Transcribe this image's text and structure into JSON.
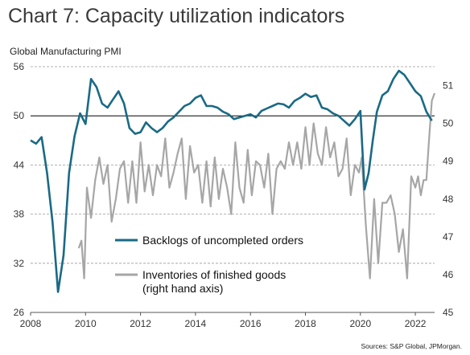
{
  "title": "Chart 7: Capacity utilization indicators",
  "source": "Sources: S&P Global, JPMorgan.",
  "chart_data": {
    "type": "line",
    "ylabel": "Global Manufacturing PMI",
    "left_axis": {
      "range": [
        26,
        56
      ],
      "ticks": [
        26,
        32,
        38,
        44,
        50,
        56
      ]
    },
    "right_axis": {
      "range": [
        45,
        51.5
      ],
      "ticks": [
        45,
        46,
        47,
        48,
        49,
        50,
        51
      ]
    },
    "x_range": [
      2008,
      2022.7
    ],
    "x_ticks": [
      2008,
      2010,
      2012,
      2014,
      2016,
      2018,
      2020,
      2022
    ],
    "grid": "horizontal-dashed",
    "reference_line": 50,
    "legend_position": "center-bottom",
    "series": [
      {
        "name": "Backlogs of uncompleted orders",
        "axis": "left",
        "color": "#1a6a85",
        "x": [
          2008.0,
          2008.2,
          2008.4,
          2008.6,
          2008.8,
          2009.0,
          2009.2,
          2009.4,
          2009.6,
          2009.8,
          2010.0,
          2010.2,
          2010.4,
          2010.6,
          2010.8,
          2011.0,
          2011.2,
          2011.4,
          2011.6,
          2011.8,
          2012.0,
          2012.2,
          2012.4,
          2012.6,
          2012.8,
          2013.0,
          2013.2,
          2013.4,
          2013.6,
          2013.8,
          2014.0,
          2014.2,
          2014.4,
          2014.6,
          2014.8,
          2015.0,
          2015.2,
          2015.4,
          2015.6,
          2015.8,
          2016.0,
          2016.2,
          2016.4,
          2016.6,
          2016.8,
          2017.0,
          2017.2,
          2017.4,
          2017.6,
          2017.8,
          2018.0,
          2018.2,
          2018.4,
          2018.6,
          2018.8,
          2019.0,
          2019.2,
          2019.4,
          2019.6,
          2019.8,
          2020.0,
          2020.15,
          2020.3,
          2020.45,
          2020.6,
          2020.8,
          2021.0,
          2021.2,
          2021.4,
          2021.6,
          2021.8,
          2022.0,
          2022.2,
          2022.4,
          2022.6
        ],
        "values": [
          47.0,
          46.6,
          47.4,
          43.0,
          37.0,
          28.5,
          33.0,
          43.0,
          47.5,
          50.3,
          49.0,
          54.5,
          53.5,
          51.5,
          51.0,
          52.0,
          53.0,
          51.5,
          48.5,
          47.8,
          48.0,
          49.2,
          48.5,
          48.0,
          48.5,
          49.3,
          49.8,
          50.5,
          51.2,
          51.5,
          52.2,
          52.5,
          51.2,
          51.2,
          51.0,
          50.5,
          50.2,
          49.6,
          49.8,
          50.0,
          50.2,
          49.8,
          50.6,
          50.9,
          51.2,
          51.5,
          51.4,
          51.0,
          51.8,
          52.2,
          52.7,
          52.3,
          52.5,
          51.0,
          50.8,
          50.3,
          50.0,
          49.4,
          48.8,
          49.6,
          50.6,
          41.0,
          43.0,
          47.0,
          50.5,
          52.5,
          53.0,
          54.5,
          55.5,
          55.0,
          54.0,
          53.0,
          52.4,
          50.5,
          49.4
        ]
      },
      {
        "name": "Inventories of finished goods (right hand axis)",
        "axis": "right",
        "color": "#a6a6a6",
        "x": [
          2009.75,
          2009.85,
          2009.95,
          2010.05,
          2010.2,
          2010.35,
          2010.5,
          2010.65,
          2010.8,
          2010.95,
          2011.1,
          2011.25,
          2011.4,
          2011.55,
          2011.7,
          2011.85,
          2012.0,
          2012.15,
          2012.3,
          2012.45,
          2012.6,
          2012.75,
          2012.9,
          2013.05,
          2013.2,
          2013.35,
          2013.5,
          2013.65,
          2013.8,
          2013.95,
          2014.1,
          2014.25,
          2014.4,
          2014.55,
          2014.7,
          2014.85,
          2015.0,
          2015.15,
          2015.3,
          2015.45,
          2015.6,
          2015.75,
          2015.9,
          2016.05,
          2016.2,
          2016.35,
          2016.5,
          2016.65,
          2016.8,
          2016.95,
          2017.1,
          2017.25,
          2017.4,
          2017.55,
          2017.7,
          2017.85,
          2018.0,
          2018.15,
          2018.3,
          2018.45,
          2018.6,
          2018.75,
          2018.9,
          2019.05,
          2019.2,
          2019.35,
          2019.5,
          2019.65,
          2019.8,
          2019.95,
          2020.05,
          2020.2,
          2020.35,
          2020.5,
          2020.65,
          2020.8,
          2020.95,
          2021.1,
          2021.25,
          2021.4,
          2021.55,
          2021.7,
          2021.85,
          2022.0,
          2022.1,
          2022.2,
          2022.3,
          2022.4,
          2022.5,
          2022.6,
          2022.7
        ],
        "values": [
          46.7,
          46.9,
          45.9,
          48.3,
          47.5,
          48.5,
          49.1,
          48.4,
          48.9,
          47.4,
          48.0,
          48.8,
          49.0,
          47.9,
          49.0,
          47.9,
          49.5,
          48.2,
          48.9,
          48.1,
          48.9,
          48.6,
          49.6,
          48.3,
          48.7,
          49.2,
          49.6,
          48.0,
          49.4,
          48.7,
          48.9,
          47.9,
          49.0,
          47.8,
          49.1,
          48.0,
          48.8,
          48.3,
          47.6,
          49.5,
          48.3,
          47.9,
          49.3,
          48.1,
          49.0,
          48.9,
          48.3,
          49.2,
          47.6,
          48.8,
          49.0,
          48.8,
          49.5,
          48.9,
          49.5,
          48.8,
          49.9,
          48.9,
          50.0,
          49.2,
          48.9,
          49.9,
          49.1,
          49.5,
          48.6,
          48.8,
          49.6,
          48.1,
          48.9,
          48.7,
          49.1,
          47.3,
          45.9,
          48.0,
          46.3,
          47.9,
          47.9,
          48.1,
          47.6,
          46.6,
          47.2,
          45.9,
          48.6,
          48.3,
          48.6,
          48.1,
          48.5,
          48.5,
          49.6,
          50.6,
          50.8
        ]
      }
    ]
  }
}
